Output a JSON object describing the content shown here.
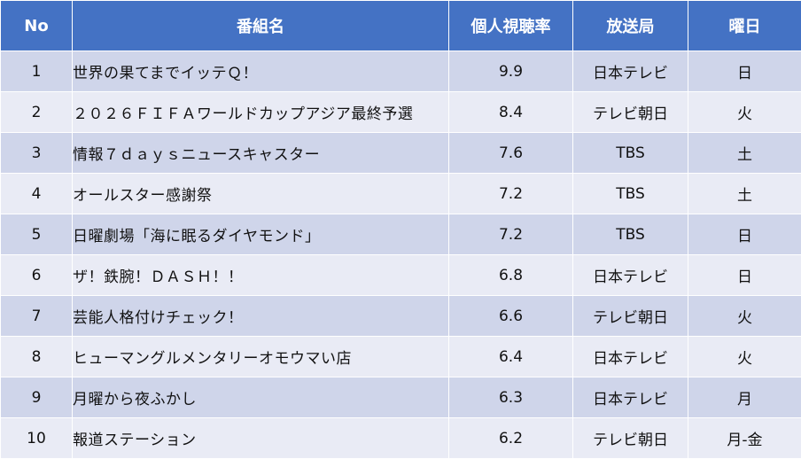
{
  "headers": {
    "no": "No",
    "title": "番組名",
    "rating": "個人視聴率",
    "station": "放送局",
    "day": "曜日"
  },
  "rows": [
    {
      "no": "1",
      "title": "世界の果てまでイッテＱ！",
      "rating": "9.9",
      "station": "日本テレビ",
      "day": "日"
    },
    {
      "no": "2",
      "title": "２０２６ＦＩＦＡワールドカップアジア最終予選",
      "rating": "8.4",
      "station": "テレビ朝日",
      "day": "火"
    },
    {
      "no": "3",
      "title": "情報７ｄａｙｓニュースキャスター",
      "rating": "7.6",
      "station": "TBS",
      "day": "土"
    },
    {
      "no": "4",
      "title": "オールスター感謝祭",
      "rating": "7.2",
      "station": "TBS",
      "day": "土"
    },
    {
      "no": "5",
      "title": "日曜劇場「海に眠るダイヤモンド」",
      "rating": "7.2",
      "station": "TBS",
      "day": "日"
    },
    {
      "no": "6",
      "title": "ザ！鉄腕！ＤＡＳＨ！！",
      "rating": "6.8",
      "station": "日本テレビ",
      "day": "日"
    },
    {
      "no": "7",
      "title": "芸能人格付けチェック！",
      "rating": "6.6",
      "station": "テレビ朝日",
      "day": "火"
    },
    {
      "no": "8",
      "title": "ヒューマングルメンタリーオモウマい店",
      "rating": "6.4",
      "station": "日本テレビ",
      "day": "火"
    },
    {
      "no": "9",
      "title": "月曜から夜ふかし",
      "rating": "6.3",
      "station": "日本テレビ",
      "day": "月"
    },
    {
      "no": "10",
      "title": "報道ステーション",
      "rating": "6.2",
      "station": "テレビ朝日",
      "day": "月-金"
    }
  ]
}
